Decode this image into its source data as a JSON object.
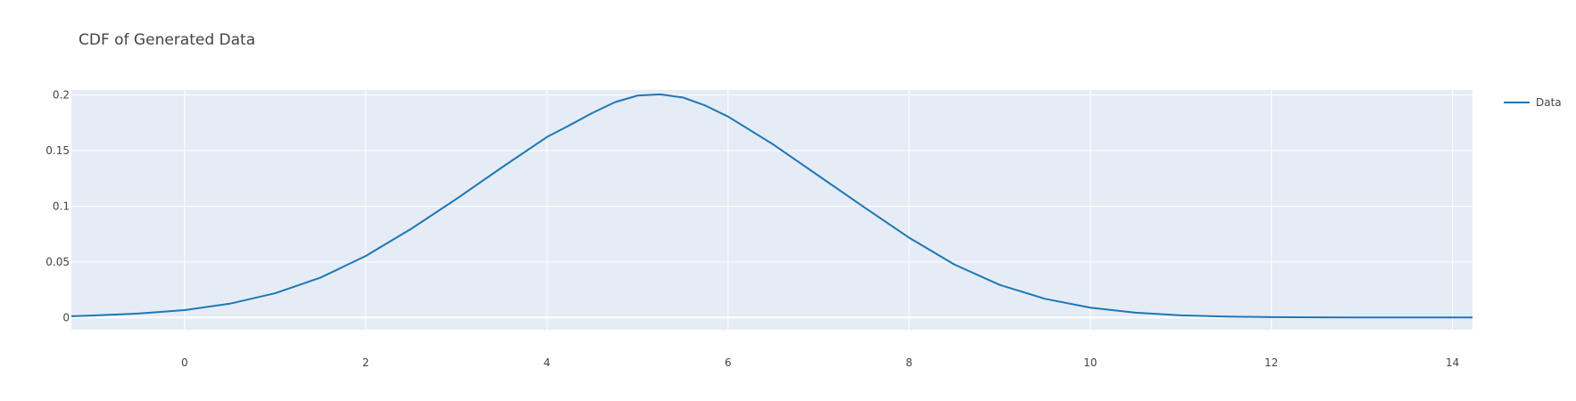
{
  "chart_data": {
    "type": "line",
    "title": "CDF of Generated Data",
    "xlabel": "",
    "ylabel": "",
    "xlim": [
      -1.25,
      14.22
    ],
    "ylim": [
      -0.011,
      0.2045
    ],
    "x_ticks": [
      0,
      2,
      4,
      6,
      8,
      10,
      12,
      14
    ],
    "x_tick_labels": [
      "0",
      "2",
      "4",
      "6",
      "8",
      "10",
      "12",
      "14"
    ],
    "y_ticks": [
      0,
      0.05,
      0.1,
      0.15,
      0.2
    ],
    "y_tick_labels": [
      "0",
      "0.05",
      "0.1",
      "0.15",
      "0.2"
    ],
    "grid": true,
    "legend_position": "top-right",
    "series": [
      {
        "name": "Data",
        "color": "#1f77b4",
        "x": [
          -1.25,
          -1.0,
          -0.5,
          0.0,
          0.5,
          1.0,
          1.5,
          2.0,
          2.5,
          3.0,
          3.5,
          4.0,
          4.25,
          4.5,
          4.75,
          5.0,
          5.25,
          5.5,
          5.75,
          6.0,
          6.5,
          7.0,
          7.5,
          8.0,
          8.5,
          9.0,
          9.5,
          10.0,
          10.5,
          11.0,
          11.5,
          12.0,
          12.5,
          13.0,
          13.5,
          14.0,
          14.22
        ],
        "y": [
          0.0011,
          0.0018,
          0.0036,
          0.0066,
          0.0124,
          0.0218,
          0.0358,
          0.0553,
          0.0796,
          0.1065,
          0.1347,
          0.1622,
          0.1728,
          0.1838,
          0.1935,
          0.1995,
          0.2006,
          0.1978,
          0.1905,
          0.1806,
          0.1555,
          0.1274,
          0.0993,
          0.0717,
          0.0476,
          0.0293,
          0.0168,
          0.0088,
          0.0043,
          0.0019,
          0.0008,
          0.0003,
          0.0001,
          0.0,
          0.0,
          0.0,
          0.0
        ]
      }
    ]
  }
}
